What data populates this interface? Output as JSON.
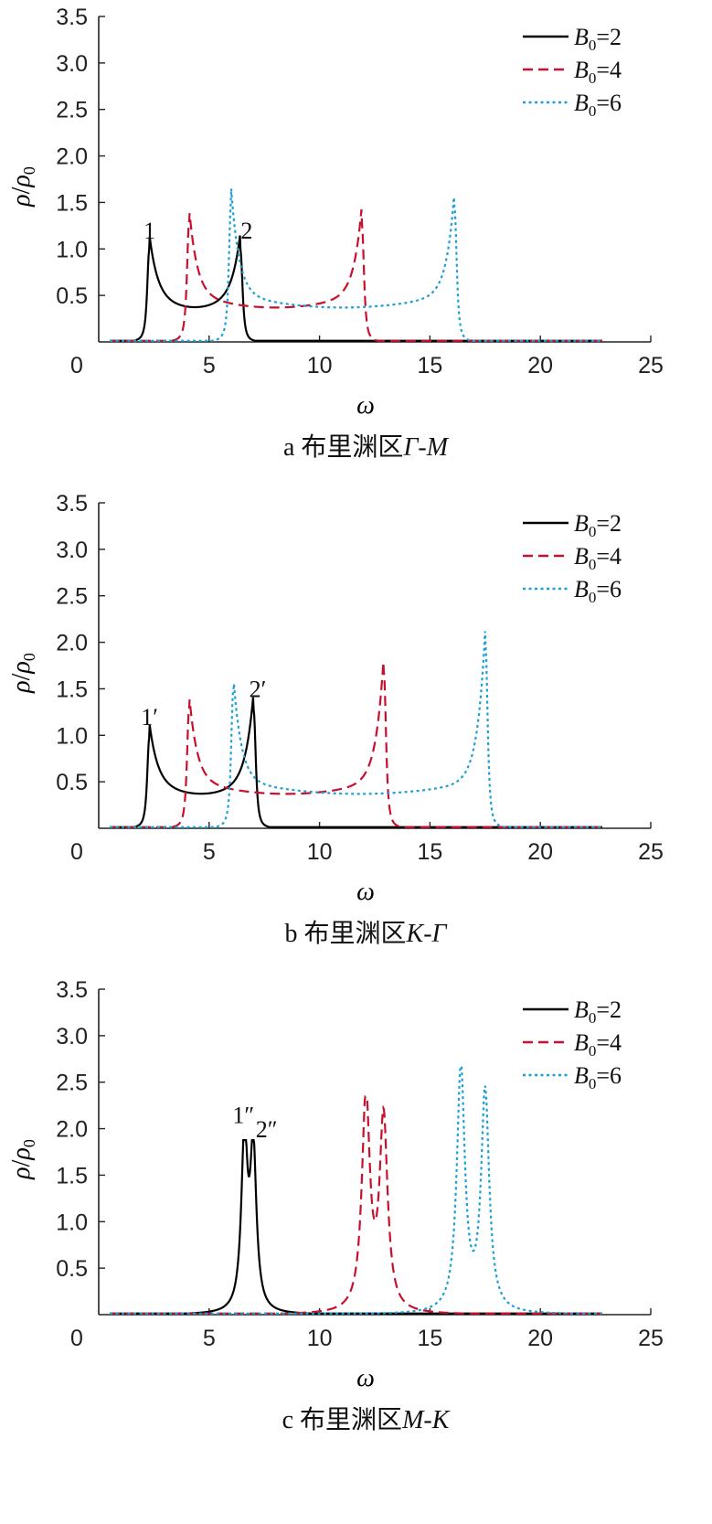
{
  "chart_data": [
    {
      "type": "line",
      "caption": {
        "letter": "a",
        "text": "布里渊区",
        "path": "Γ-M"
      },
      "xlabel": "ω",
      "ylabel": {
        "symbol": "ρ",
        "denominator": "ρ",
        "sub": "0"
      },
      "xlim": [
        0,
        25
      ],
      "ylim": [
        0,
        3.5
      ],
      "xticks": [
        "0",
        "5",
        "10",
        "15",
        "20",
        "25"
      ],
      "yticks": [
        "0.5",
        "1.0",
        "1.5",
        "2.0",
        "2.5",
        "3.0",
        "3.5"
      ],
      "legend_position": "top-right",
      "series": [
        {
          "name": "B0=2",
          "label": {
            "sym": "B",
            "sub": "0",
            "val": "=2"
          },
          "color": "#000000",
          "dash": "solid",
          "peaks": [
            {
              "x": 2.3,
              "h": 1.0,
              "left": 0.5
            },
            {
              "x": 6.4,
              "h": 1.0,
              "left": 0.2
            }
          ]
        },
        {
          "name": "B0=4",
          "label": {
            "sym": "B",
            "sub": "0",
            "val": "=4"
          },
          "color": "#c8102e",
          "dash": "dashed",
          "peaks": [
            {
              "x": 4.1,
              "h": 1.28,
              "left": 0.5
            },
            {
              "x": 11.9,
              "h": 1.28,
              "left": 0.2
            }
          ]
        },
        {
          "name": "B0=6",
          "label": {
            "sym": "B",
            "sub": "0",
            "val": "=6"
          },
          "color": "#1a9fd6",
          "dash": "dotted",
          "peaks": [
            {
              "x": 6.0,
              "h": 1.5,
              "left": 0.5
            },
            {
              "x": 16.1,
              "h": 1.45,
              "left": 0.2
            }
          ]
        }
      ],
      "annotations": [
        {
          "text": "1",
          "x": 2.3,
          "y": 1.05
        },
        {
          "text": "2",
          "x": 6.7,
          "y": 1.05
        }
      ]
    },
    {
      "type": "line",
      "caption": {
        "letter": "b",
        "text": "布里渊区",
        "path": "K-Γ"
      },
      "xlabel": "ω",
      "ylabel": {
        "symbol": "ρ",
        "denominator": "ρ",
        "sub": "0"
      },
      "xlim": [
        0,
        25
      ],
      "ylim": [
        0,
        3.5
      ],
      "xticks": [
        "0",
        "5",
        "10",
        "15",
        "20",
        "25"
      ],
      "yticks": [
        "0.5",
        "1.0",
        "1.5",
        "2.0",
        "2.5",
        "3.0",
        "3.5"
      ],
      "legend_position": "top-right",
      "series": [
        {
          "name": "B0=2",
          "label": {
            "sym": "B",
            "sub": "0",
            "val": "=2"
          },
          "color": "#000000",
          "dash": "solid",
          "peaks": [
            {
              "x": 2.3,
              "h": 0.98,
              "left": 0.5
            },
            {
              "x": 7.0,
              "h": 1.28,
              "left": 0.2
            }
          ]
        },
        {
          "name": "B0=4",
          "label": {
            "sym": "B",
            "sub": "0",
            "val": "=4"
          },
          "color": "#c8102e",
          "dash": "dashed",
          "peaks": [
            {
              "x": 4.1,
              "h": 1.28,
              "left": 0.5
            },
            {
              "x": 12.9,
              "h": 1.68,
              "left": 0.2
            }
          ]
        },
        {
          "name": "B0=6",
          "label": {
            "sym": "B",
            "sub": "0",
            "val": "=6"
          },
          "color": "#1a9fd6",
          "dash": "dotted",
          "peaks": [
            {
              "x": 6.1,
              "h": 1.48,
              "left": 0.5
            },
            {
              "x": 17.5,
              "h": 1.98,
              "left": 0.2
            }
          ]
        }
      ],
      "annotations": [
        {
          "text": "1′",
          "x": 2.3,
          "y": 1.05
        },
        {
          "text": "2′",
          "x": 7.2,
          "y": 1.35
        }
      ]
    },
    {
      "type": "line",
      "caption": {
        "letter": "c",
        "text": "布里渊区",
        "path": "M-K"
      },
      "xlabel": "ω",
      "ylabel": {
        "symbol": "ρ",
        "denominator": "ρ",
        "sub": "0"
      },
      "xlim": [
        0,
        25
      ],
      "ylim": [
        0,
        3.5
      ],
      "xticks": [
        "0",
        "5",
        "10",
        "15",
        "20",
        "25"
      ],
      "yticks": [
        "0.5",
        "1.0",
        "1.5",
        "2.0",
        "2.5",
        "3.0",
        "3.5"
      ],
      "legend_position": "top-right",
      "series": [
        {
          "name": "B0=2",
          "label": {
            "sym": "B",
            "sub": "0",
            "val": "=2"
          },
          "color": "#000000",
          "dash": "solid",
          "peaks": [
            {
              "x": 6.6,
              "h": 1.84,
              "left": 0.5,
              "w": 0.17
            },
            {
              "x": 7.0,
              "h": 1.7,
              "left": 0.5,
              "w": 0.17
            }
          ]
        },
        {
          "name": "B0=4",
          "label": {
            "sym": "B",
            "sub": "0",
            "val": "=4"
          },
          "color": "#c8102e",
          "dash": "dashed",
          "peaks": [
            {
              "x": 12.1,
              "h": 2.3,
              "left": 0.5,
              "w": 0.22
            },
            {
              "x": 12.9,
              "h": 2.06,
              "left": 0.5,
              "w": 0.22
            }
          ]
        },
        {
          "name": "B0=6",
          "label": {
            "sym": "B",
            "sub": "0",
            "val": "=6"
          },
          "color": "#1a9fd6",
          "dash": "dotted",
          "peaks": [
            {
              "x": 16.4,
              "h": 2.62,
              "left": 0.5,
              "w": 0.22
            },
            {
              "x": 17.5,
              "h": 2.36,
              "left": 0.5,
              "w": 0.22
            }
          ]
        }
      ],
      "annotations": [
        {
          "text": "1″",
          "x": 6.55,
          "y": 2.0
        },
        {
          "text": "2″",
          "x": 7.6,
          "y": 1.85
        }
      ]
    }
  ]
}
